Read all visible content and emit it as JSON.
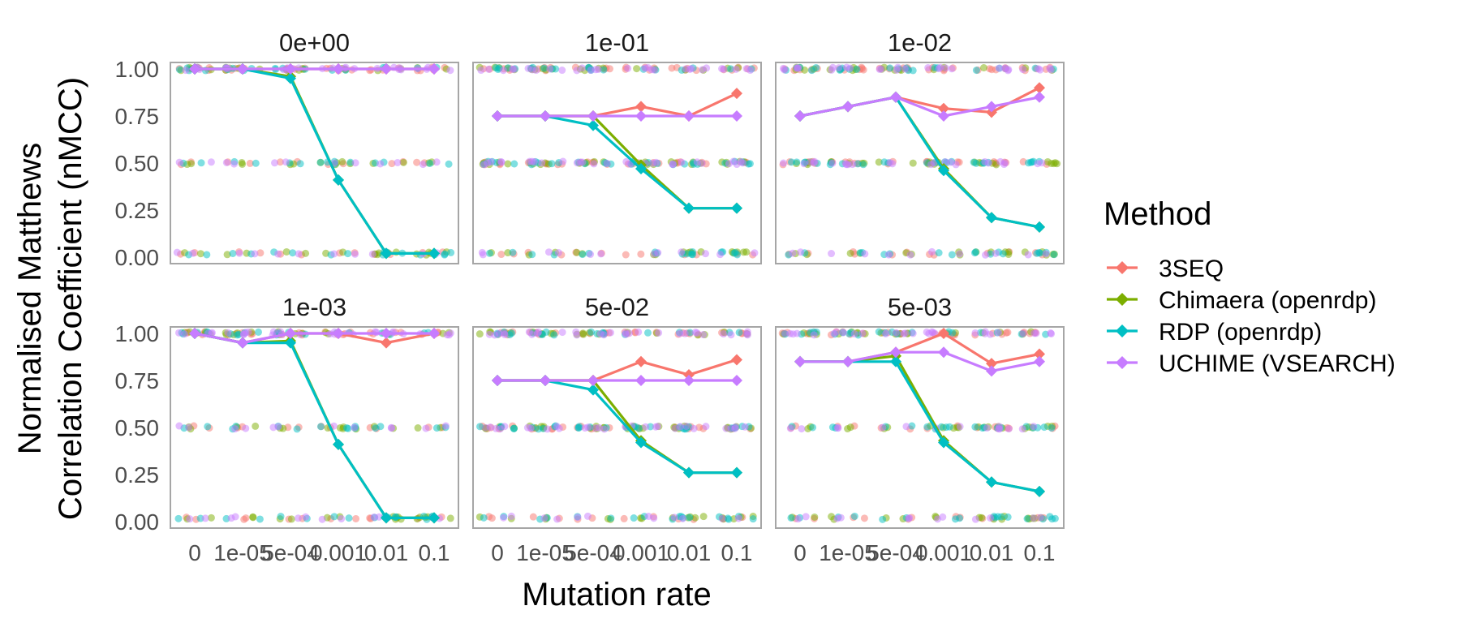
{
  "chart_data": {
    "type": "line",
    "ylabel_lines": [
      "Normalised Matthews",
      "Correlation Coefficient (nMCC)"
    ],
    "xlabel": "Mutation rate",
    "ylim": [
      0,
      1
    ],
    "y_ticks": [
      "0.00",
      "0.25",
      "0.50",
      "0.75",
      "1.00"
    ],
    "x_categories": [
      "0",
      "1e-05",
      "5e-04",
      "0.001",
      "0.01",
      "0.1"
    ],
    "x_tick_labels": [
      "0",
      "1e-05",
      "5e-04",
      "0.001",
      "0.01",
      "0.1"
    ],
    "legend": {
      "title": "Method",
      "position": "right",
      "entries": [
        {
          "key": "3SEQ",
          "label": "3SEQ",
          "color": "#F8766D"
        },
        {
          "key": "Chimaera",
          "label": "Chimaera (openrdp)",
          "color": "#7CAE00"
        },
        {
          "key": "RDP",
          "label": "RDP (openrdp)",
          "color": "#00BFC4"
        },
        {
          "key": "UCHIME",
          "label": "UCHIME (VSEARCH)",
          "color": "#C77CFF"
        }
      ]
    },
    "facets": [
      {
        "title": "0e+00",
        "series": {
          "3SEQ": [
            1,
            1,
            1,
            1,
            1,
            1
          ],
          "Chimaera": [
            1,
            1,
            0.96,
            0.41,
            0.02,
            0.02
          ],
          "RDP": [
            1,
            1,
            0.95,
            0.41,
            0.02,
            0.02
          ],
          "UCHIME": [
            1,
            1,
            1,
            1,
            1,
            1
          ]
        }
      },
      {
        "title": "1e-01",
        "series": {
          "3SEQ": [
            0.75,
            0.75,
            0.75,
            0.8,
            0.75,
            0.87
          ],
          "Chimaera": [
            0.75,
            0.75,
            0.75,
            0.49,
            0.26,
            0.26
          ],
          "RDP": [
            0.75,
            0.75,
            0.7,
            0.47,
            0.26,
            0.26
          ],
          "UCHIME": [
            0.75,
            0.75,
            0.75,
            0.75,
            0.75,
            0.75
          ]
        }
      },
      {
        "title": "1e-02",
        "series": {
          "3SEQ": [
            0.75,
            0.8,
            0.85,
            0.79,
            0.77,
            0.9
          ],
          "Chimaera": [
            0.75,
            0.8,
            0.85,
            0.47,
            0.21,
            0.16
          ],
          "RDP": [
            0.75,
            0.8,
            0.85,
            0.46,
            0.21,
            0.16
          ],
          "UCHIME": [
            0.75,
            0.8,
            0.85,
            0.75,
            0.8,
            0.85
          ]
        }
      },
      {
        "title": "1e-03",
        "series": {
          "3SEQ": [
            1,
            0.95,
            1,
            1,
            0.95,
            1
          ],
          "Chimaera": [
            1,
            0.95,
            0.96,
            0.41,
            0.02,
            0.02
          ],
          "RDP": [
            1,
            0.95,
            0.95,
            0.41,
            0.02,
            0.02
          ],
          "UCHIME": [
            1,
            0.95,
            1,
            1,
            1,
            1
          ]
        }
      },
      {
        "title": "5e-02",
        "series": {
          "3SEQ": [
            0.75,
            0.75,
            0.75,
            0.85,
            0.78,
            0.86
          ],
          "Chimaera": [
            0.75,
            0.75,
            0.75,
            0.43,
            0.26,
            0.26
          ],
          "RDP": [
            0.75,
            0.75,
            0.7,
            0.42,
            0.26,
            0.26
          ],
          "UCHIME": [
            0.75,
            0.75,
            0.75,
            0.75,
            0.75,
            0.75
          ]
        }
      },
      {
        "title": "5e-03",
        "series": {
          "3SEQ": [
            0.85,
            0.85,
            0.9,
            1,
            0.84,
            0.89
          ],
          "Chimaera": [
            0.85,
            0.85,
            0.88,
            0.43,
            0.21,
            0.16
          ],
          "RDP": [
            0.85,
            0.85,
            0.85,
            0.42,
            0.21,
            0.16
          ],
          "UCHIME": [
            0.85,
            0.85,
            0.9,
            0.9,
            0.8,
            0.85
          ]
        }
      }
    ]
  }
}
